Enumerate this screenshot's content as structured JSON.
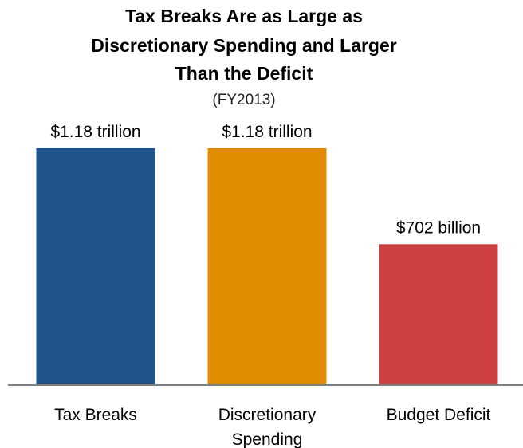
{
  "chart_data": {
    "type": "bar",
    "title_lines": [
      "Tax Breaks Are as Large as",
      "Discretionary Spending and Larger",
      "Than the Deficit"
    ],
    "subtitle": "(FY2013)",
    "categories": [
      [
        "Tax Breaks"
      ],
      [
        "Discretionary",
        "Spending"
      ],
      [
        "Budget Deficit"
      ]
    ],
    "values": [
      1180,
      1180,
      702
    ],
    "value_unit": "billion USD",
    "data_labels": [
      "$1.18 trillion",
      "$1.18 trillion",
      "$702 billion"
    ],
    "colors": [
      "#1f538a",
      "#e08c00",
      "#cc4140"
    ],
    "axis_color": "#7f7f7f",
    "ylim": [
      0,
      1180
    ],
    "grid": false,
    "legend": "none"
  }
}
